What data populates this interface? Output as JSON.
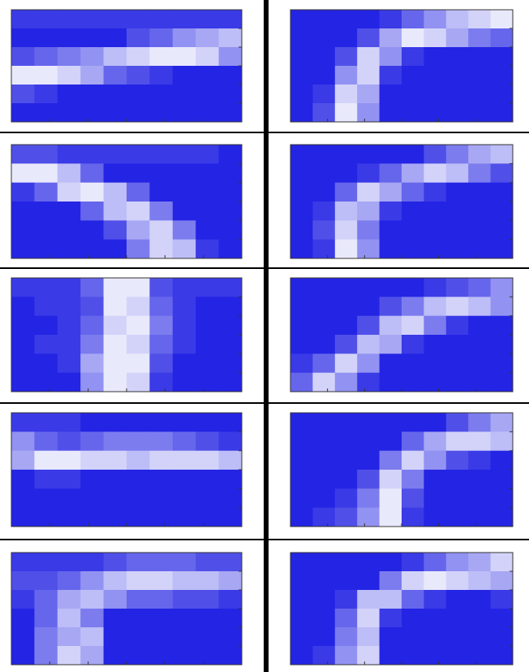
{
  "chart_data": [
    {
      "type": "heatmap",
      "colors": [
        "#2424e4",
        "#ffffff"
      ],
      "values": [
        [
          0.1,
          0.1,
          0.1,
          0.1,
          0.1,
          0.1,
          0.1,
          0.1,
          0.1,
          0.1
        ],
        [
          0,
          0,
          0,
          0,
          0,
          0.2,
          0.3,
          0.5,
          0.6,
          0.7
        ],
        [
          0.2,
          0.3,
          0.4,
          0.5,
          0.7,
          0.8,
          0.9,
          0.9,
          0.8,
          0.5
        ],
        [
          0.9,
          0.9,
          0.8,
          0.6,
          0.3,
          0.2,
          0.1,
          0,
          0,
          0
        ],
        [
          0.2,
          0.1,
          0,
          0,
          0,
          0,
          0,
          0,
          0,
          0
        ],
        [
          0,
          0,
          0,
          0,
          0,
          0,
          0,
          0,
          0,
          0
        ]
      ]
    },
    {
      "type": "heatmap",
      "colors": [
        "#2424e4",
        "#ffffff"
      ],
      "values": [
        [
          0,
          0,
          0,
          0,
          0.1,
          0.3,
          0.5,
          0.7,
          0.8,
          0.9
        ],
        [
          0,
          0,
          0,
          0.2,
          0.6,
          0.9,
          0.8,
          0.6,
          0.4,
          0.3
        ],
        [
          0,
          0,
          0.2,
          0.8,
          0.5,
          0.1,
          0,
          0,
          0,
          0
        ],
        [
          0,
          0,
          0.5,
          0.8,
          0.1,
          0,
          0,
          0,
          0,
          0
        ],
        [
          0,
          0.1,
          0.8,
          0.6,
          0,
          0,
          0,
          0,
          0,
          0
        ],
        [
          0,
          0.2,
          0.9,
          0.5,
          0,
          0,
          0,
          0,
          0,
          0
        ]
      ]
    },
    {
      "type": "heatmap",
      "colors": [
        "#2424e4",
        "#ffffff"
      ],
      "values": [
        [
          0.2,
          0.2,
          0.1,
          0.1,
          0.1,
          0.1,
          0.1,
          0.1,
          0.1,
          0
        ],
        [
          0.9,
          0.9,
          0.7,
          0.3,
          0,
          0,
          0,
          0,
          0,
          0
        ],
        [
          0.1,
          0.3,
          0.8,
          0.9,
          0.7,
          0.3,
          0,
          0,
          0,
          0
        ],
        [
          0,
          0,
          0,
          0.3,
          0.7,
          0.8,
          0.4,
          0,
          0,
          0
        ],
        [
          0,
          0,
          0,
          0,
          0.2,
          0.6,
          0.8,
          0.4,
          0,
          0
        ],
        [
          0,
          0,
          0,
          0,
          0,
          0.4,
          0.8,
          0.7,
          0.1,
          0
        ]
      ]
    },
    {
      "type": "heatmap",
      "colors": [
        "#2424e4",
        "#ffffff"
      ],
      "values": [
        [
          0,
          0,
          0,
          0,
          0,
          0,
          0.2,
          0.4,
          0.6,
          0.7
        ],
        [
          0,
          0,
          0,
          0.1,
          0.3,
          0.6,
          0.8,
          0.7,
          0.4,
          0.2
        ],
        [
          0,
          0,
          0.3,
          0.8,
          0.6,
          0.3,
          0.1,
          0,
          0,
          0
        ],
        [
          0,
          0.1,
          0.7,
          0.6,
          0.1,
          0,
          0,
          0,
          0,
          0
        ],
        [
          0,
          0.2,
          0.8,
          0.4,
          0,
          0,
          0,
          0,
          0,
          0
        ],
        [
          0,
          0.1,
          0.9,
          0.5,
          0,
          0,
          0,
          0,
          0,
          0
        ]
      ]
    },
    {
      "type": "heatmap",
      "colors": [
        "#2424e4",
        "#ffffff"
      ],
      "values": [
        [
          0.1,
          0.1,
          0.1,
          0.3,
          0.9,
          0.9,
          0.2,
          0.1,
          0.1,
          0.1
        ],
        [
          0,
          0.1,
          0.1,
          0.2,
          0.9,
          0.8,
          0.3,
          0.1,
          0,
          0
        ],
        [
          0,
          0,
          0.1,
          0.3,
          0.8,
          0.9,
          0.4,
          0.1,
          0,
          0
        ],
        [
          0,
          0.1,
          0.1,
          0.4,
          0.9,
          0.8,
          0.3,
          0.1,
          0,
          0
        ],
        [
          0,
          0,
          0.1,
          0.6,
          0.9,
          0.9,
          0.2,
          0,
          0,
          0
        ],
        [
          0,
          0,
          0,
          0.5,
          0.9,
          0.8,
          0.1,
          0,
          0,
          0
        ]
      ]
    },
    {
      "type": "heatmap",
      "colors": [
        "#2424e4",
        "#ffffff"
      ],
      "values": [
        [
          0,
          0,
          0,
          0,
          0,
          0,
          0.1,
          0.2,
          0.3,
          0.5
        ],
        [
          0,
          0,
          0,
          0,
          0.2,
          0.4,
          0.7,
          0.8,
          0.7,
          0.5
        ],
        [
          0,
          0,
          0,
          0.2,
          0.7,
          0.8,
          0.4,
          0.1,
          0,
          0
        ],
        [
          0,
          0,
          0.2,
          0.7,
          0.6,
          0.1,
          0,
          0,
          0,
          0
        ],
        [
          0.1,
          0.3,
          0.8,
          0.5,
          0,
          0,
          0,
          0,
          0,
          0
        ],
        [
          0.3,
          0.8,
          0.5,
          0.1,
          0,
          0,
          0,
          0,
          0,
          0
        ]
      ]
    },
    {
      "type": "heatmap",
      "colors": [
        "#2424e4",
        "#ffffff"
      ],
      "values": [
        [
          0.1,
          0.1,
          0.1,
          0,
          0,
          0,
          0,
          0,
          0,
          0
        ],
        [
          0.5,
          0.3,
          0.2,
          0.3,
          0.4,
          0.4,
          0.4,
          0.3,
          0.2,
          0.1
        ],
        [
          0.6,
          0.9,
          0.9,
          0.8,
          0.8,
          0.7,
          0.8,
          0.8,
          0.8,
          0.7
        ],
        [
          0,
          0.1,
          0.1,
          0,
          0,
          0,
          0,
          0,
          0,
          0
        ],
        [
          0,
          0,
          0,
          0,
          0,
          0,
          0,
          0,
          0,
          0
        ],
        [
          0,
          0,
          0,
          0,
          0,
          0,
          0,
          0,
          0,
          0
        ]
      ]
    },
    {
      "type": "heatmap",
      "colors": [
        "#2424e4",
        "#ffffff"
      ],
      "values": [
        [
          0,
          0,
          0,
          0,
          0,
          0,
          0,
          0.2,
          0.4,
          0.6
        ],
        [
          0,
          0,
          0,
          0,
          0,
          0.3,
          0.6,
          0.8,
          0.8,
          0.7
        ],
        [
          0,
          0,
          0,
          0,
          0.4,
          0.8,
          0.5,
          0.2,
          0.1,
          0
        ],
        [
          0,
          0,
          0,
          0.2,
          0.8,
          0.4,
          0,
          0,
          0,
          0
        ],
        [
          0,
          0,
          0.1,
          0.4,
          0.9,
          0.2,
          0,
          0,
          0,
          0
        ],
        [
          0,
          0.1,
          0.2,
          0.5,
          0.9,
          0.1,
          0,
          0,
          0,
          0
        ]
      ]
    },
    {
      "type": "heatmap",
      "colors": [
        "#2424e4",
        "#ffffff"
      ],
      "values": [
        [
          0.1,
          0.1,
          0.1,
          0.1,
          0.2,
          0.3,
          0.3,
          0.3,
          0.2,
          0.2
        ],
        [
          0.2,
          0.2,
          0.3,
          0.5,
          0.7,
          0.8,
          0.8,
          0.7,
          0.7,
          0.6
        ],
        [
          0.1,
          0.3,
          0.6,
          0.7,
          0.5,
          0.3,
          0.3,
          0.2,
          0.2,
          0.1
        ],
        [
          0,
          0.3,
          0.7,
          0.4,
          0,
          0,
          0,
          0,
          0,
          0
        ],
        [
          0,
          0.4,
          0.6,
          0.7,
          0,
          0,
          0,
          0,
          0,
          0
        ],
        [
          0,
          0.4,
          0.8,
          0.6,
          0,
          0,
          0,
          0,
          0,
          0
        ]
      ]
    },
    {
      "type": "heatmap",
      "colors": [
        "#2424e4",
        "#ffffff"
      ],
      "values": [
        [
          0,
          0,
          0,
          0,
          0,
          0.1,
          0.3,
          0.5,
          0.6,
          0.8
        ],
        [
          0,
          0,
          0,
          0,
          0.4,
          0.8,
          0.9,
          0.8,
          0.7,
          0.6
        ],
        [
          0,
          0,
          0.1,
          0.7,
          0.7,
          0.3,
          0.1,
          0,
          0,
          0.1
        ],
        [
          0,
          0,
          0.3,
          0.8,
          0.1,
          0,
          0,
          0,
          0,
          0
        ],
        [
          0,
          0,
          0.4,
          0.7,
          0,
          0,
          0,
          0,
          0,
          0
        ],
        [
          0,
          0.1,
          0.5,
          0.8,
          0,
          0,
          0,
          0,
          0,
          0
        ]
      ]
    }
  ]
}
